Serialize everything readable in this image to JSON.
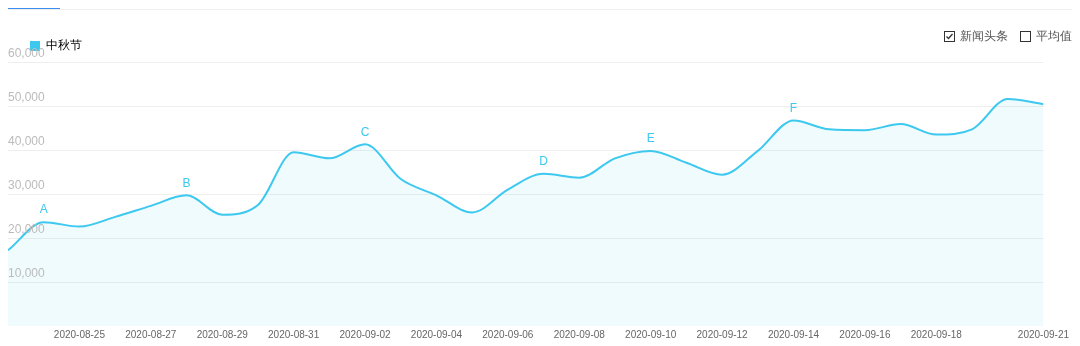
{
  "chart_data": {
    "type": "area",
    "x": [
      "2020-08-23",
      "2020-08-24",
      "2020-08-25",
      "2020-08-26",
      "2020-08-27",
      "2020-08-28",
      "2020-08-29",
      "2020-08-30",
      "2020-08-31",
      "2020-09-01",
      "2020-09-02",
      "2020-09-03",
      "2020-09-04",
      "2020-09-05",
      "2020-09-06",
      "2020-09-07",
      "2020-09-08",
      "2020-09-09",
      "2020-09-10",
      "2020-09-11",
      "2020-09-12",
      "2020-09-13",
      "2020-09-14",
      "2020-09-15",
      "2020-09-16",
      "2020-09-17",
      "2020-09-18",
      "2020-09-19",
      "2020-09-20",
      "2020-09-21"
    ],
    "series": [
      {
        "name": "中秋节",
        "color": "#3cc8ef",
        "values": [
          17200,
          23600,
          22600,
          24800,
          27300,
          29700,
          25300,
          27500,
          39500,
          38100,
          41300,
          33400,
          29700,
          25800,
          31000,
          34600,
          33700,
          38100,
          39800,
          37100,
          34400,
          39800,
          46700,
          44700,
          44500,
          45900,
          43500,
          44700,
          51600,
          50400
        ]
      }
    ],
    "xlim": [
      "2020-08-23",
      "2020-09-21"
    ],
    "xticks": [
      "2020-08-25",
      "2020-08-27",
      "2020-08-29",
      "2020-08-31",
      "2020-09-02",
      "2020-09-04",
      "2020-09-06",
      "2020-09-08",
      "2020-09-10",
      "2020-09-12",
      "2020-09-14",
      "2020-09-16",
      "2020-09-18",
      "2020-09-21"
    ],
    "ylim": [
      0,
      60000
    ],
    "yticks": [
      {
        "value": 10000,
        "label": "10,000"
      },
      {
        "value": 20000,
        "label": "20,000"
      },
      {
        "value": 30000,
        "label": "30,000"
      },
      {
        "value": 40000,
        "label": "40,000"
      },
      {
        "value": 50000,
        "label": "50,000"
      },
      {
        "value": 60000,
        "label": "60,000"
      }
    ],
    "grid": "y",
    "legend": "top left",
    "marker": "none",
    "line_style": "solid",
    "annotations": [
      {
        "text": "A",
        "x": "2020-08-24",
        "y": 23600
      },
      {
        "text": "B",
        "x": "2020-08-28",
        "y": 29700
      },
      {
        "text": "C",
        "x": "2020-09-02",
        "y": 41300
      },
      {
        "text": "D",
        "x": "2020-09-07",
        "y": 34600
      },
      {
        "text": "E",
        "x": "2020-09-10",
        "y": 39800
      },
      {
        "text": "F",
        "x": "2020-09-14",
        "y": 46700
      },
      "新闻头条",
      "平均值"
    ]
  }
}
